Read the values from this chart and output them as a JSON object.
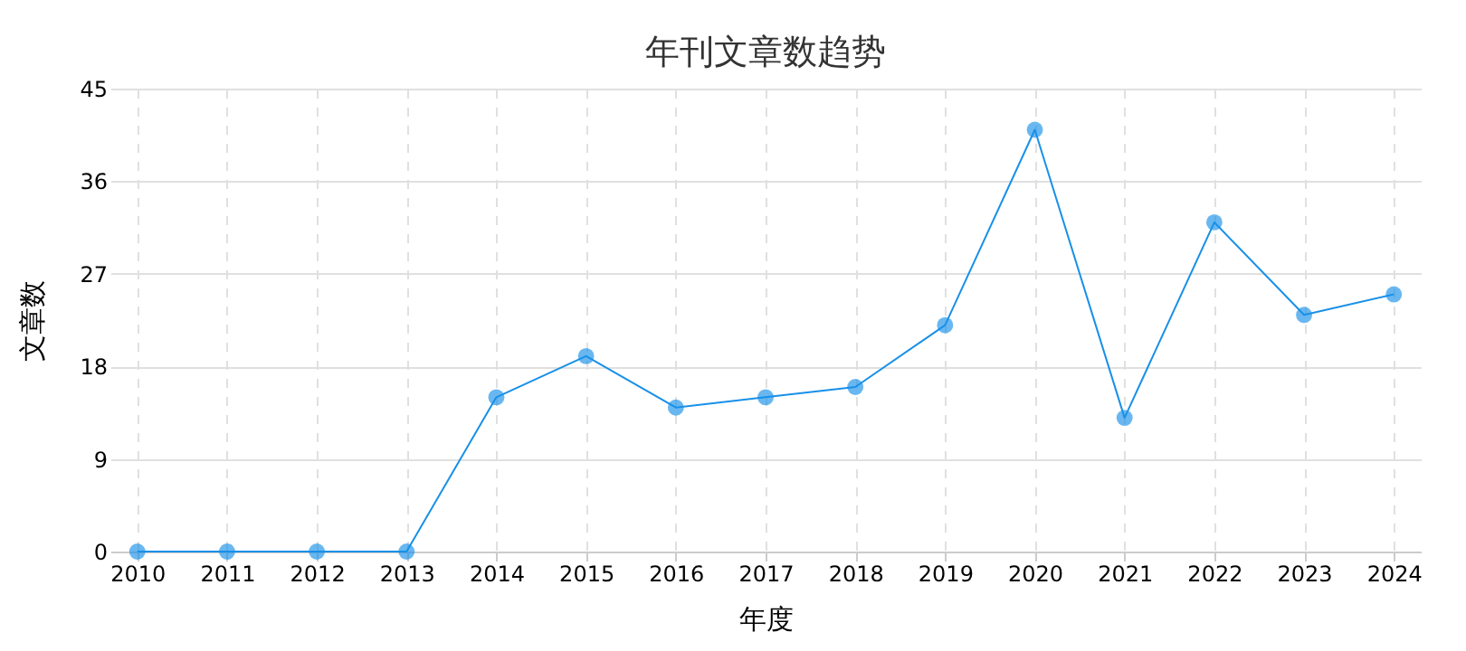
{
  "chart_data": {
    "type": "line",
    "title": "年刊文章数趋势",
    "xlabel": "年度",
    "ylabel": "文章数",
    "categories": [
      "2010",
      "2011",
      "2012",
      "2013",
      "2014",
      "2015",
      "2016",
      "2017",
      "2018",
      "2019",
      "2020",
      "2021",
      "2022",
      "2023",
      "2024"
    ],
    "series": [
      {
        "color": "#1890e8",
        "values": [
          0,
          0,
          0,
          0,
          15,
          19,
          14,
          15,
          16,
          22,
          41,
          13,
          32,
          23,
          25
        ]
      }
    ],
    "ylim": [
      0,
      45
    ],
    "yticks": [
      0,
      9,
      18,
      27,
      36,
      45
    ],
    "grid": true,
    "marker": "circle",
    "line_style": "solid"
  }
}
